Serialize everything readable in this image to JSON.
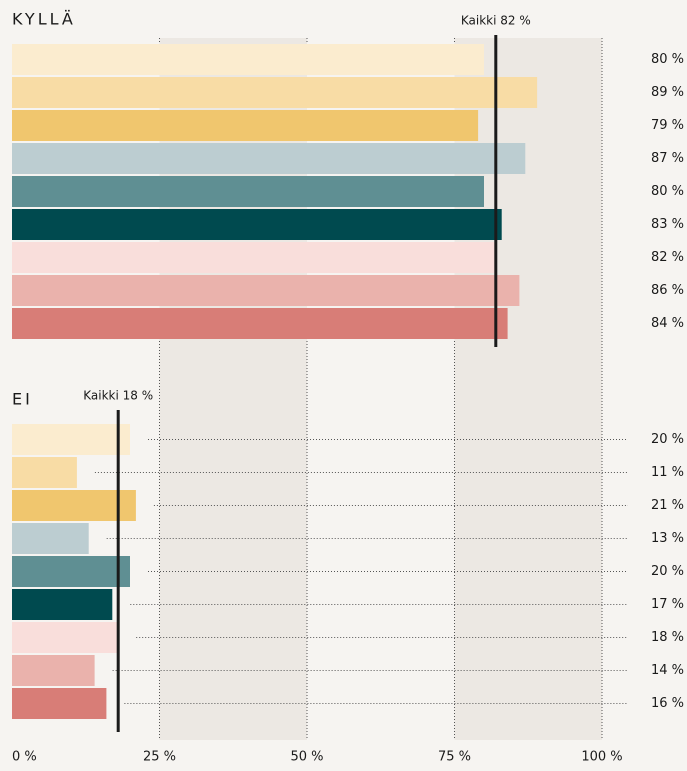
{
  "chart_data": [
    {
      "type": "bar",
      "title": "KYLLÄ",
      "values": [
        80,
        89,
        79,
        87,
        80,
        83,
        82,
        86,
        84
      ],
      "value_labels": [
        "80 %",
        "89 %",
        "79 %",
        "87 %",
        "80 %",
        "83 %",
        "82 %",
        "86 %",
        "84 %"
      ],
      "colors": [
        "#fbeccf",
        "#f8dca5",
        "#f0c66e",
        "#bccdd1",
        "#5f8f93",
        "#004a4f",
        "#f9dedb",
        "#eab2ac",
        "#d87d77"
      ],
      "reference": {
        "value": 82,
        "label": "Kaikki 82 %"
      },
      "xlim": [
        0,
        100
      ]
    },
    {
      "type": "bar",
      "title": "EI",
      "values": [
        20,
        11,
        21,
        13,
        20,
        17,
        18,
        14,
        16
      ],
      "value_labels": [
        "20 %",
        "11 %",
        "21 %",
        "13 %",
        "20 %",
        "17 %",
        "18 %",
        "14 %",
        "16 %"
      ],
      "colors": [
        "#fbeccf",
        "#f8dca5",
        "#f0c66e",
        "#bccdd1",
        "#5f8f93",
        "#004a4f",
        "#f9dedb",
        "#eab2ac",
        "#d87d77"
      ],
      "reference": {
        "value": 18,
        "label": "Kaikki 18 %"
      },
      "xlim": [
        0,
        100
      ],
      "xticks": [
        {
          "value": 0,
          "label": "0 %"
        },
        {
          "value": 25,
          "label": "25 %"
        },
        {
          "value": 50,
          "label": "50 %"
        },
        {
          "value": 75,
          "label": "75 %"
        },
        {
          "value": 100,
          "label": "100 %"
        }
      ]
    }
  ]
}
